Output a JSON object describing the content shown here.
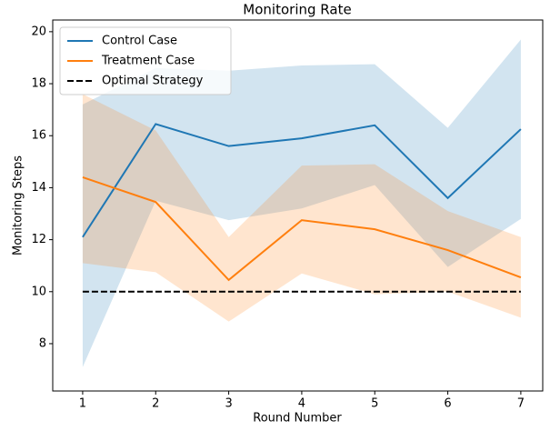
{
  "chart_data": {
    "type": "line",
    "title": "Monitoring Rate",
    "xlabel": "Round Number",
    "ylabel": "Monitoring Steps",
    "x": [
      1,
      2,
      3,
      4,
      5,
      6,
      7
    ],
    "series": [
      {
        "name": "Control Case",
        "color": "#1f77b4",
        "values": [
          12.1,
          16.45,
          15.6,
          15.9,
          16.4,
          13.6,
          16.25
        ],
        "upper": [
          17.2,
          18.6,
          18.5,
          18.7,
          18.75,
          16.3,
          19.7
        ],
        "lower": [
          7.1,
          13.5,
          12.75,
          13.2,
          14.1,
          10.95,
          12.8
        ]
      },
      {
        "name": "Treatment Case",
        "color": "#ff7f0e",
        "values": [
          14.4,
          13.45,
          10.45,
          12.75,
          12.4,
          11.6,
          10.55
        ],
        "upper": [
          17.6,
          16.2,
          12.1,
          14.85,
          14.9,
          13.1,
          12.1
        ],
        "lower": [
          11.1,
          10.75,
          8.85,
          10.7,
          9.9,
          10.0,
          9.0
        ]
      }
    ],
    "hlines": [
      {
        "name": "Optimal Strategy",
        "value": 10,
        "color": "#000000",
        "dashed": true
      }
    ],
    "xlim": [
      0.59,
      7.3
    ],
    "ylim": [
      6.18,
      20.45
    ],
    "xticks": [
      1,
      2,
      3,
      4,
      5,
      6,
      7
    ],
    "yticks": [
      8,
      10,
      12,
      14,
      16,
      18,
      20
    ],
    "band_opacity": 0.2,
    "legend": "upper left"
  }
}
